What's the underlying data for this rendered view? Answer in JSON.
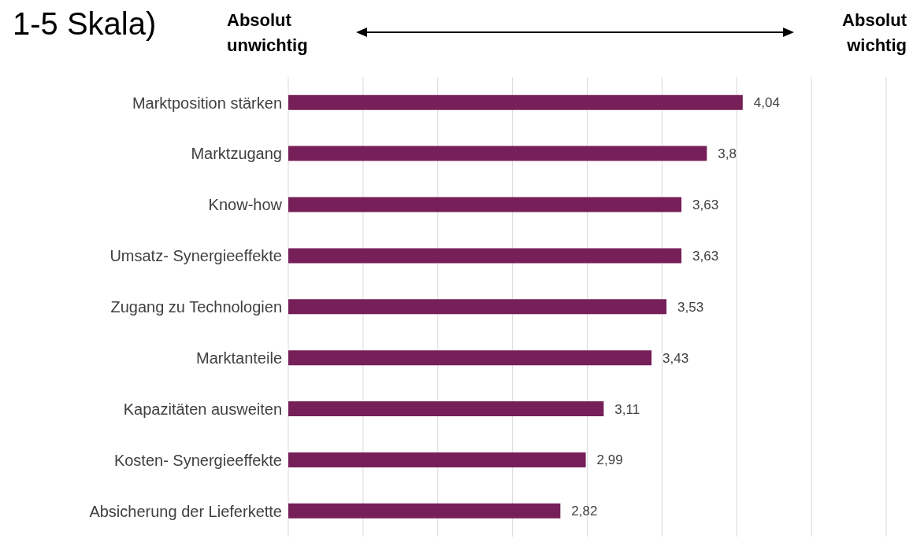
{
  "chart_data": {
    "type": "bar",
    "orientation": "horizontal",
    "title": "1-5 Skala)",
    "annotations": [
      "Absolut unwichtig",
      "Absolut wichtig"
    ],
    "categories": [
      "Marktposition stärken",
      "Marktzugang",
      "Know-how",
      "Umsatz- Synergieeffekte",
      "Zugang zu Technologien",
      "Marktanteile",
      "Kapazitäten ausweiten",
      "Kosten- Synergieeffekte",
      "Absicherung der Lieferkette"
    ],
    "values": [
      4.04,
      3.8,
      3.63,
      3.63,
      3.53,
      3.43,
      3.11,
      2.99,
      2.82
    ],
    "value_labels": [
      "4,04",
      "3,8",
      "3,63",
      "3,63",
      "3,53",
      "3,43",
      "3,11",
      "2,99",
      "2,82"
    ],
    "color": "#761f59",
    "xlim": [
      1,
      5
    ],
    "xticks": [
      {
        "value": 1,
        "label": null
      },
      {
        "value": 1.5,
        "label": null
      },
      {
        "value": 2,
        "label": null
      },
      {
        "value": 2.5,
        "label": null
      },
      {
        "value": 3,
        "label": null
      },
      {
        "value": 3.5,
        "label": null
      },
      {
        "value": 4,
        "label": null
      },
      {
        "value": 4.5,
        "label": null
      },
      {
        "value": 5,
        "label": null
      }
    ],
    "grid": "x",
    "tick_labels": "y"
  }
}
